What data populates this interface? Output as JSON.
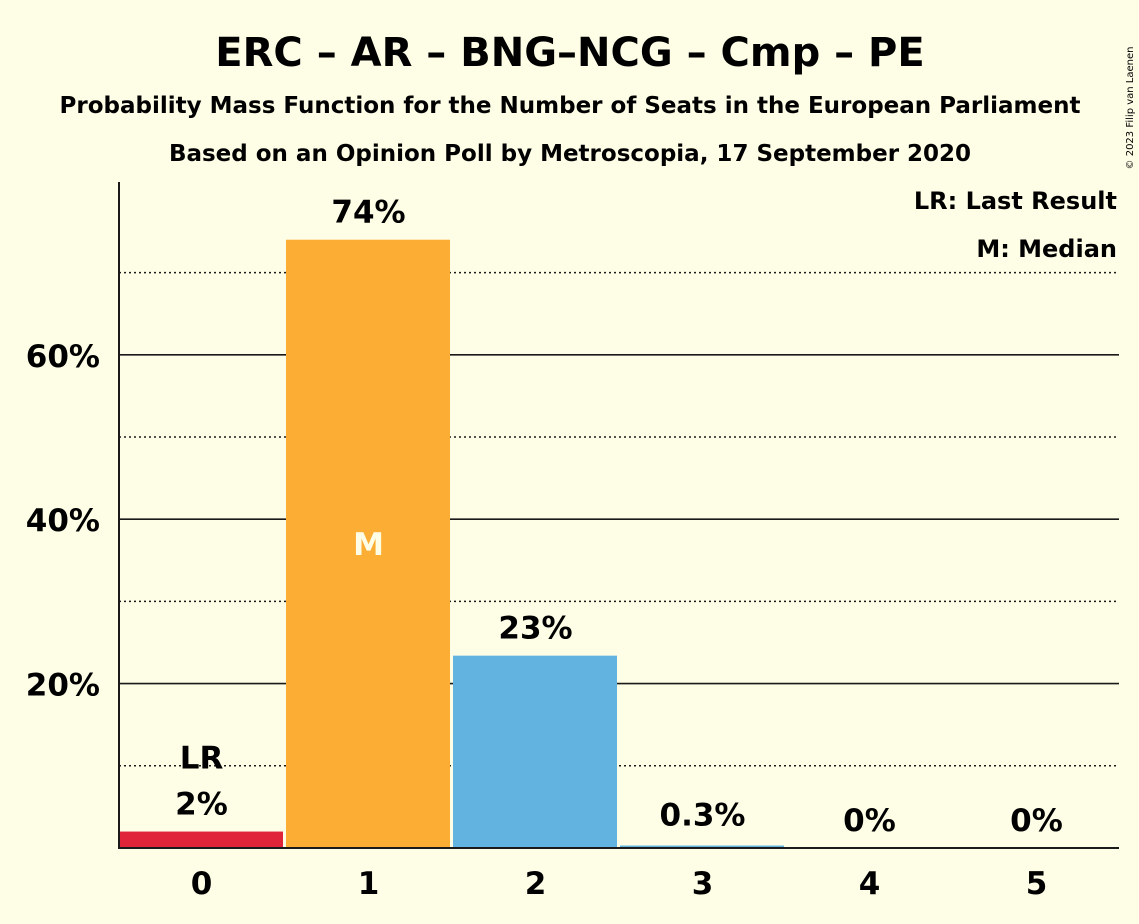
{
  "title": "ERC – AR – BNG–NCG – Cmp – PE",
  "subtitle": "Probability Mass Function for the Number of Seats in the European Parliament",
  "subtitle2": "Based on an Opinion Poll by Metroscopia, 17 September 2020",
  "copyright": "© 2023 Filip van Laenen",
  "legend": {
    "last_result": "LR: Last Result",
    "median": "M: Median",
    "placement": "top-right"
  },
  "colors": {
    "background": "#fefde6",
    "last_result_bar": "#e0243a",
    "median_bar": "#fcae34",
    "other_bar": "#62b3df",
    "median_marker": "#fefde6"
  },
  "chart_data": {
    "type": "bar",
    "categories": [
      "0",
      "1",
      "2",
      "3",
      "4",
      "5"
    ],
    "values": [
      2,
      74,
      23.4,
      0.3,
      0,
      0
    ],
    "labels": [
      "2%",
      "74%",
      "23%",
      "0.3%",
      "0%",
      "0%"
    ],
    "bar_colors": [
      "#e0243a",
      "#fcae34",
      "#62b3df",
      "#62b3df",
      "#62b3df",
      "#62b3df"
    ],
    "last_result_index": 0,
    "last_result_marker": "LR",
    "median_index": 1,
    "median_marker": "M",
    "ylim": [
      0,
      80
    ],
    "yticks_major": [
      20,
      40,
      60
    ],
    "ytick_labels": [
      "20%",
      "40%",
      "60%"
    ],
    "yticks_minor": [
      10,
      30,
      50,
      70
    ],
    "grid": true
  }
}
